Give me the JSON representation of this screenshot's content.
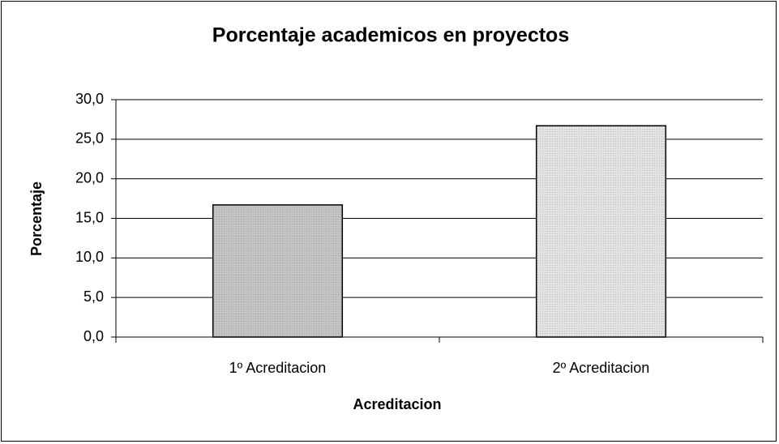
{
  "chart_data": {
    "type": "bar",
    "title": "Porcentaje academicos en proyectos",
    "x_label": "Acreditacion",
    "y_label": "Porcentaje",
    "categories": [
      "1º Acreditacion",
      "2º Acreditacion"
    ],
    "values": [
      16.7,
      26.7
    ],
    "colors": [
      "#c4c4c4",
      "#e2e2e2"
    ],
    "ylim": [
      0,
      30
    ],
    "yticks": [
      {
        "value": 0,
        "label": "0,0"
      },
      {
        "value": 5,
        "label": "5,0"
      },
      {
        "value": 10,
        "label": "10,0"
      },
      {
        "value": 15,
        "label": "15,0"
      },
      {
        "value": 20,
        "label": "20,0"
      },
      {
        "value": 25,
        "label": "25,0"
      },
      {
        "value": 30,
        "label": "30,0"
      }
    ],
    "grid": true
  }
}
